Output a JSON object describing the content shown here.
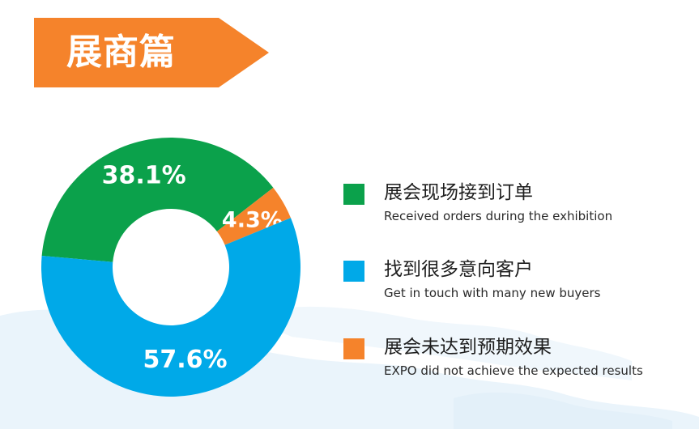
{
  "banner": {
    "title": "展商篇",
    "color": "#f5832b"
  },
  "chart_data": {
    "type": "pie",
    "donut": true,
    "slices": [
      {
        "value": 38.1,
        "label": "38.1%",
        "color": "#0ba14b"
      },
      {
        "value": 4.3,
        "label": "4.3%",
        "color": "#f5832b"
      },
      {
        "value": 57.6,
        "label": "57.6%",
        "color": "#00a9e8"
      }
    ]
  },
  "legend": [
    {
      "cn": "展会现场接到订单",
      "en": "Received orders during the exhibition",
      "color": "#0ba14b"
    },
    {
      "cn": "找到很多意向客户",
      "en": "Get in touch with many new buyers",
      "color": "#00a9e8"
    },
    {
      "cn": "展会未达到预期效果",
      "en": "EXPO did not achieve the expected results",
      "color": "#f5832b"
    }
  ]
}
